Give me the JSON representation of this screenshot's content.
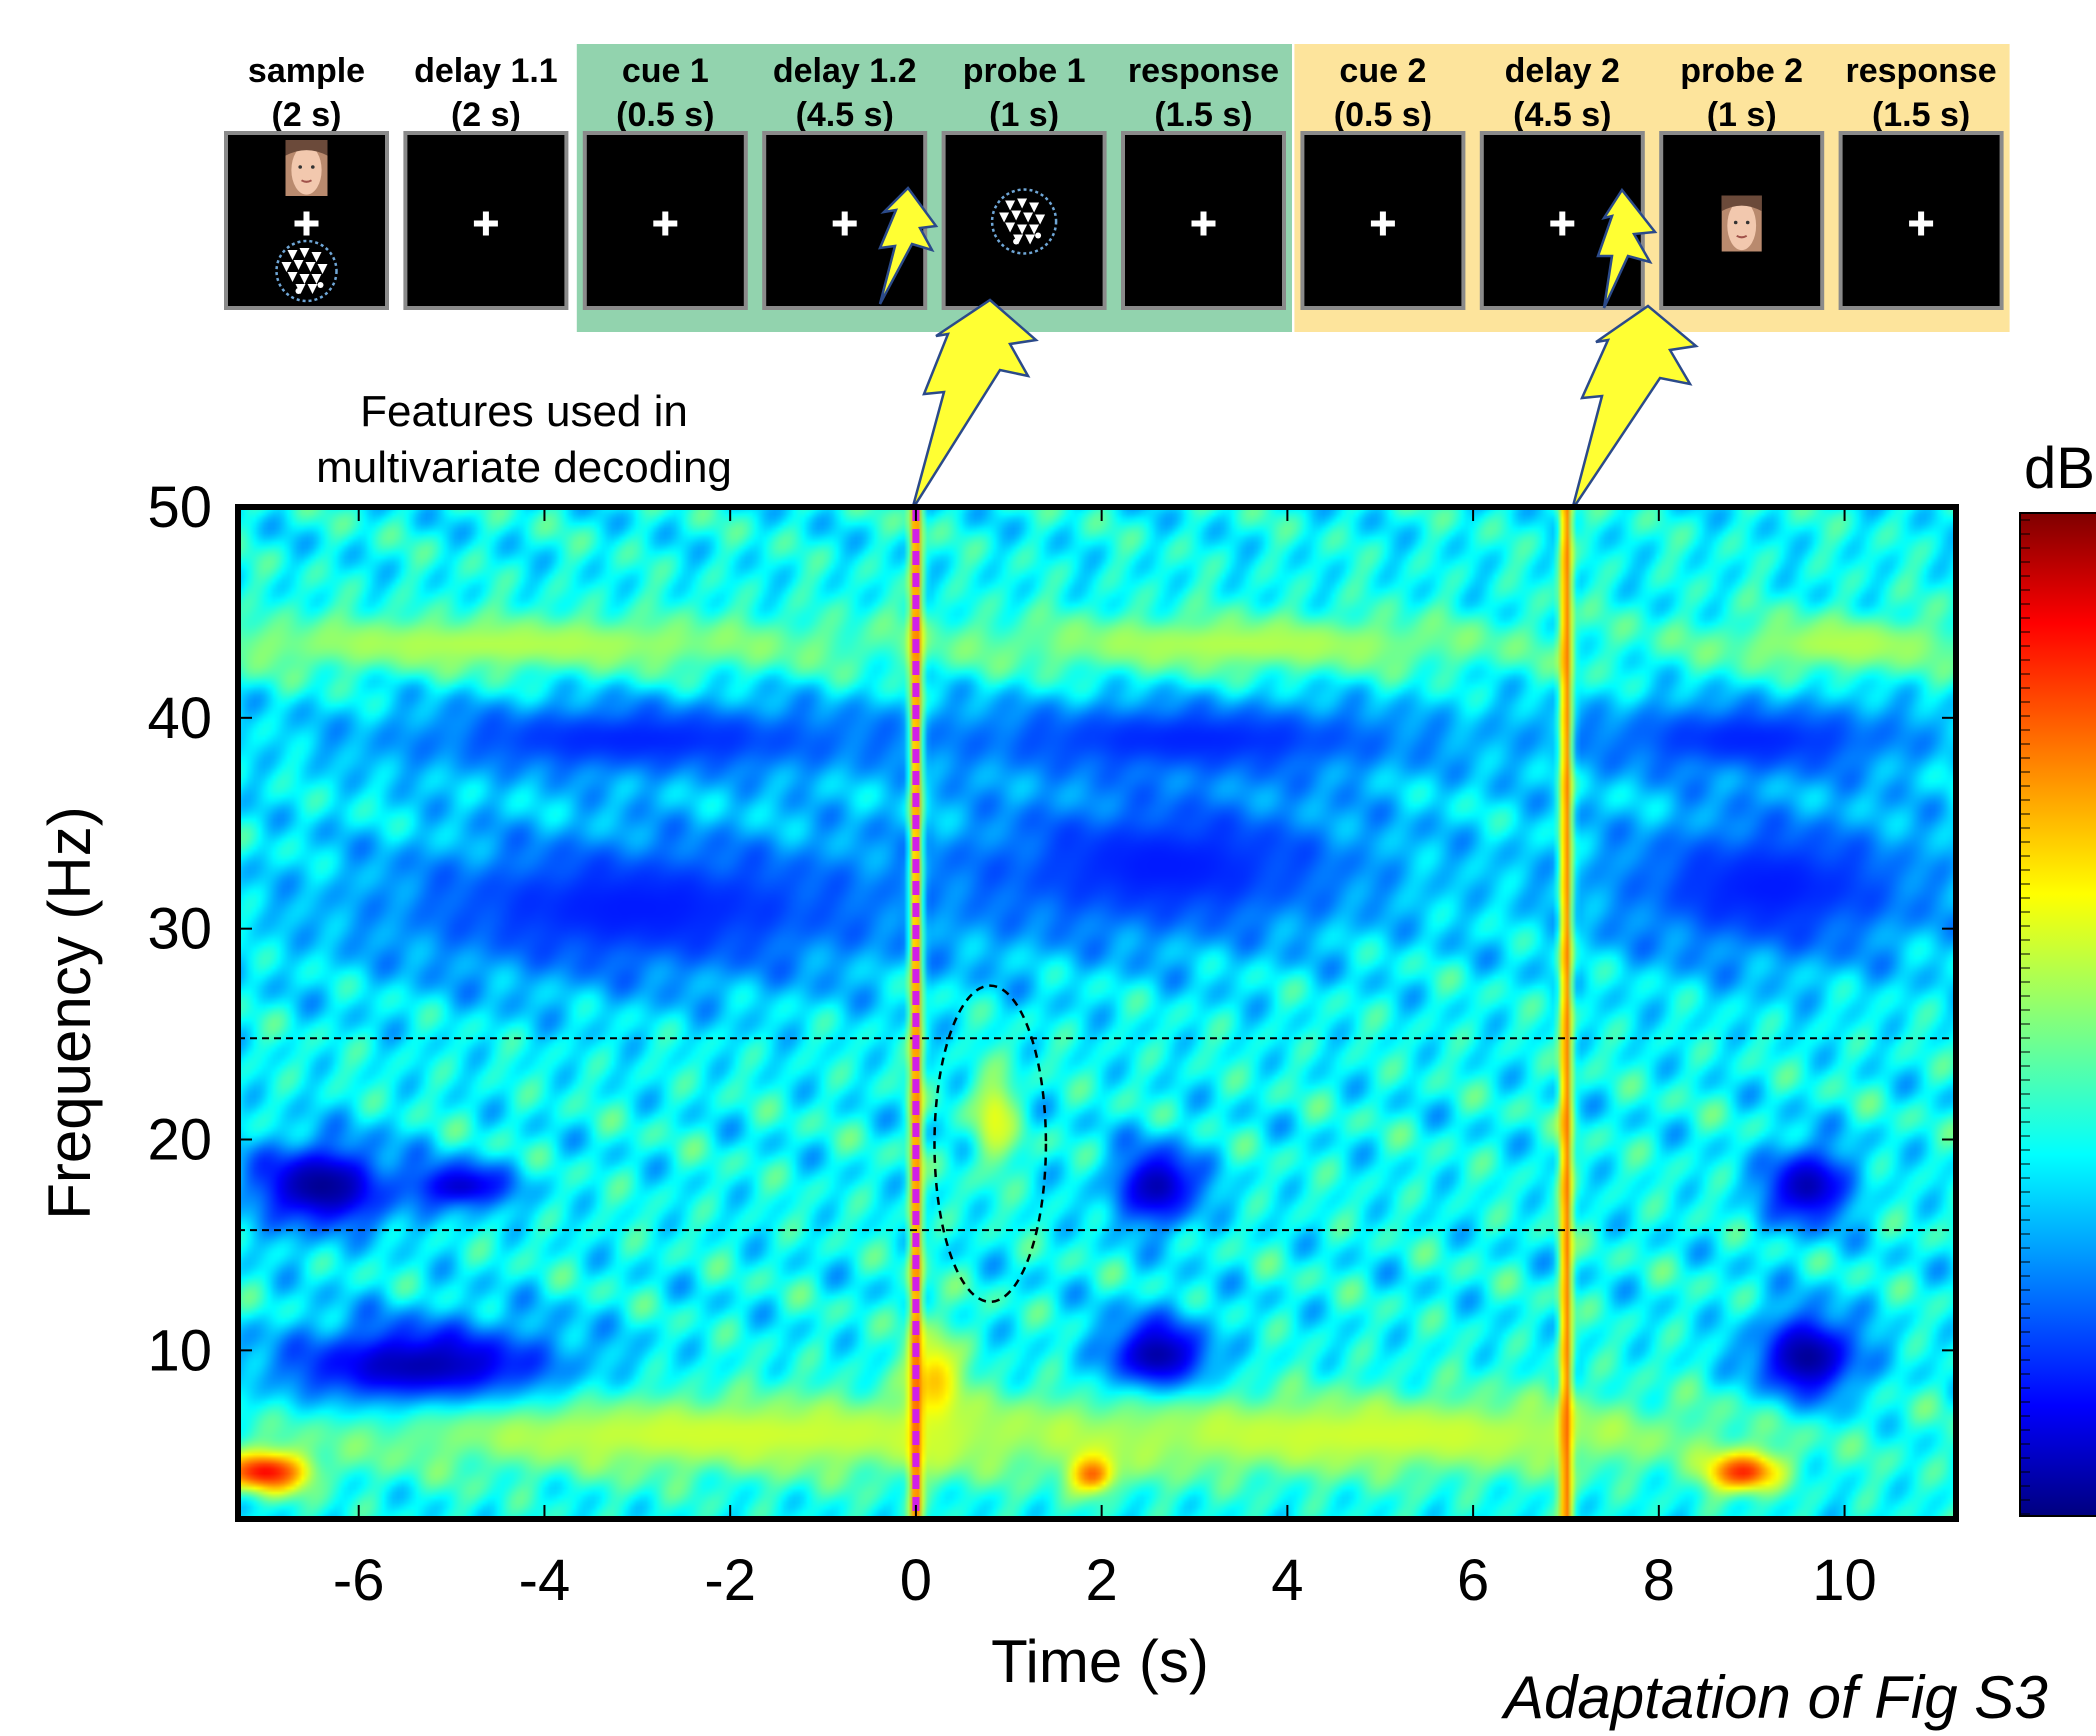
{
  "timeline": {
    "phases": [
      {
        "name": "sample",
        "duration": "(2 s)",
        "group": "none",
        "content": "sample-stimuli"
      },
      {
        "name": "delay 1.1",
        "duration": "(2 s)",
        "group": "none",
        "content": "fixation"
      },
      {
        "name": "cue 1",
        "duration": "(0.5 s)",
        "group": "first",
        "content": "fixation"
      },
      {
        "name": "delay 1.2",
        "duration": "(4.5 s)",
        "group": "first",
        "content": "fixation"
      },
      {
        "name": "probe 1",
        "duration": "(1 s)",
        "group": "first",
        "content": "dot-pattern"
      },
      {
        "name": "response",
        "duration": "(1.5 s)",
        "group": "first",
        "content": "fixation"
      },
      {
        "name": "cue 2",
        "duration": "(0.5 s)",
        "group": "second",
        "content": "fixation"
      },
      {
        "name": "delay 2",
        "duration": "(4.5 s)",
        "group": "second",
        "content": "fixation"
      },
      {
        "name": "probe 2",
        "duration": "(1 s)",
        "group": "second",
        "content": "face"
      },
      {
        "name": "response",
        "duration": "(1.5 s)",
        "group": "second",
        "content": "fixation"
      }
    ],
    "group_colors": {
      "first": "#92d3ae",
      "second": "#fde49c"
    },
    "bolt_color": "#ffff33",
    "icons": [
      "face-icon",
      "dot-pattern-icon",
      "fixation-cross-icon",
      "lightning-bolt-icon"
    ]
  },
  "annotation": "Features used in\nmultivariate decoding",
  "caption": "Adaptation of Fig S3",
  "chart_data": {
    "type": "heatmap",
    "xlabel": "Time (s)",
    "ylabel": "Frequency (Hz)",
    "colorbar_label": "dB",
    "colormap": "jet",
    "xlim": [
      -7.3,
      11.2
    ],
    "ylim": [
      2,
      50
    ],
    "xticks": [
      -6,
      -4,
      -2,
      0,
      2,
      4,
      6,
      8,
      10
    ],
    "yticks": [
      10,
      20,
      30,
      40,
      50
    ],
    "markers": [
      {
        "type": "vertical-line",
        "x": 0,
        "style": "dashed",
        "color": "#d21fe6"
      },
      {
        "type": "vertical-band",
        "x": 0,
        "color": "#e6501e"
      },
      {
        "type": "vertical-band",
        "x": 7,
        "color": "#e6501e"
      }
    ],
    "band_lines": {
      "y": [
        15.7,
        24.8
      ],
      "style": "dashed",
      "color": "#000000"
    },
    "ellipse": {
      "center_time": 0.8,
      "center_freq": 19.8,
      "time_radius": 0.6,
      "freq_radius": 7.5,
      "style": "dashed"
    },
    "background_level": 0.38,
    "features": [
      {
        "time": -6.4,
        "freq": 17.8,
        "dt": 0.8,
        "df": 2.2,
        "level": 0.02
      },
      {
        "time": -4.9,
        "freq": 17.8,
        "dt": 0.6,
        "df": 1.2,
        "level": 0.08
      },
      {
        "time": -5.3,
        "freq": 9.0,
        "dt": 1.6,
        "df": 2.4,
        "level": 0.02
      },
      {
        "time": -3.0,
        "freq": 31.0,
        "dt": 3.2,
        "df": 4.0,
        "level": 0.15
      },
      {
        "time": 2.7,
        "freq": 33.0,
        "dt": 2.5,
        "df": 4.0,
        "level": 0.15
      },
      {
        "time": 9.2,
        "freq": 32.0,
        "dt": 2.0,
        "df": 4.0,
        "level": 0.15
      },
      {
        "time": -3.0,
        "freq": 39.0,
        "dt": 3.0,
        "df": 2.0,
        "level": 0.16
      },
      {
        "time": 3.0,
        "freq": 39.0,
        "dt": 2.8,
        "df": 2.0,
        "level": 0.16
      },
      {
        "time": 9.0,
        "freq": 39.0,
        "dt": 2.0,
        "df": 2.0,
        "level": 0.16
      },
      {
        "time": 2.6,
        "freq": 9.6,
        "dt": 0.6,
        "df": 2.1,
        "level": 0.02
      },
      {
        "time": 9.6,
        "freq": 9.6,
        "dt": 0.6,
        "df": 2.3,
        "level": 0.02
      },
      {
        "time": 2.6,
        "freq": 17.8,
        "dt": 0.5,
        "df": 2.0,
        "level": 0.05
      },
      {
        "time": 9.6,
        "freq": 17.8,
        "dt": 0.5,
        "df": 2.0,
        "level": 0.05
      },
      {
        "time": -7.0,
        "freq": 4.3,
        "dt": 0.5,
        "df": 1.0,
        "level": 0.93
      },
      {
        "time": 1.9,
        "freq": 4.3,
        "dt": 0.25,
        "df": 1.0,
        "level": 0.93
      },
      {
        "time": 8.9,
        "freq": 4.3,
        "dt": 0.4,
        "df": 1.0,
        "level": 0.9
      },
      {
        "time": 0.2,
        "freq": 8.0,
        "dt": 0.3,
        "df": 3.0,
        "level": 0.72
      },
      {
        "time": 0.85,
        "freq": 21.0,
        "dt": 0.25,
        "df": 2.5,
        "level": 0.6
      },
      {
        "time": -4.5,
        "freq": 43.5,
        "dt": 4.0,
        "df": 1.4,
        "level": 0.55
      },
      {
        "time": 3.5,
        "freq": 43.5,
        "dt": 3.0,
        "df": 1.4,
        "level": 0.55
      },
      {
        "time": 10.0,
        "freq": 43.5,
        "dt": 1.5,
        "df": 1.4,
        "level": 0.55
      },
      {
        "time": -2.0,
        "freq": 6.0,
        "dt": 5.0,
        "df": 2.0,
        "level": 0.58
      },
      {
        "time": 5.0,
        "freq": 6.0,
        "dt": 4.0,
        "df": 2.0,
        "level": 0.58
      }
    ]
  }
}
